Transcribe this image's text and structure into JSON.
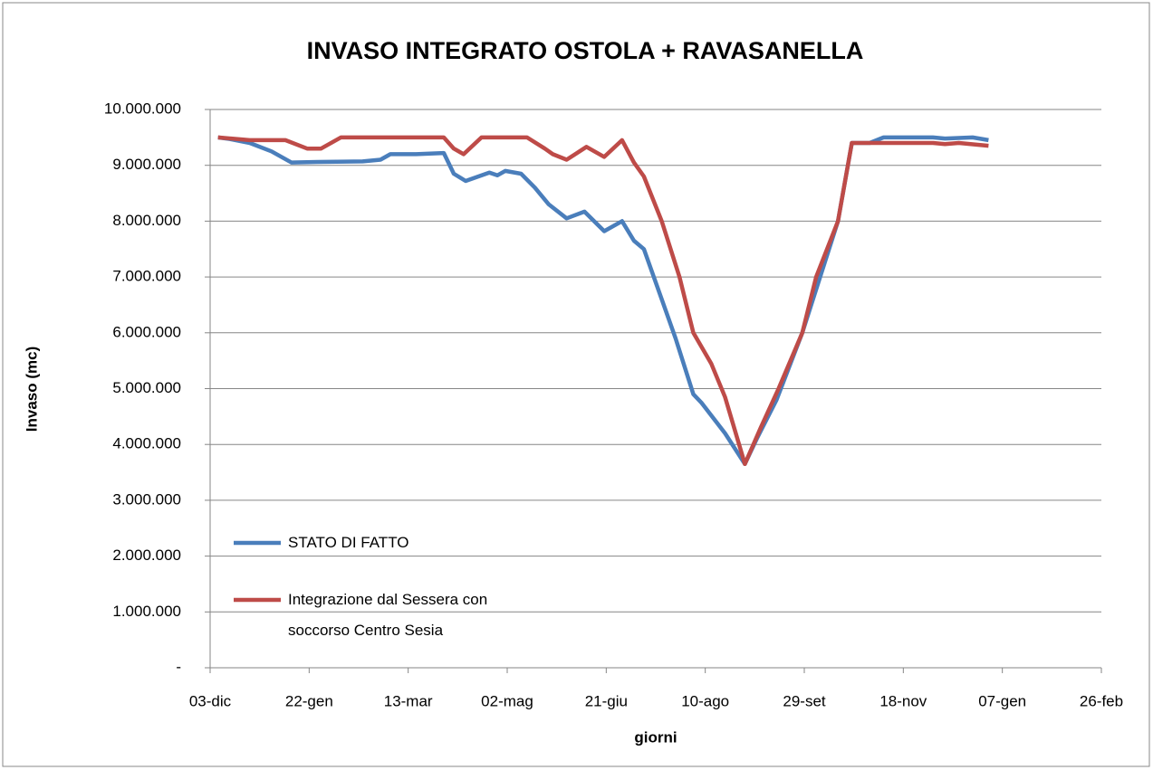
{
  "chart_data": {
    "type": "line",
    "title": "INVASO INTEGRATO OSTOLA + RAVASANELLA",
    "x_label": "giorni",
    "y_label": "Invaso (mc)",
    "xlim": [
      0,
      450
    ],
    "xticks": [
      {
        "value": 0,
        "label": "03-dic"
      },
      {
        "value": 50,
        "label": "22-gen"
      },
      {
        "value": 100,
        "label": "13-mar"
      },
      {
        "value": 150,
        "label": "02-mag"
      },
      {
        "value": 200,
        "label": "21-giu"
      },
      {
        "value": 250,
        "label": "10-ago"
      },
      {
        "value": 300,
        "label": "29-set"
      },
      {
        "value": 350,
        "label": "18-nov"
      },
      {
        "value": 400,
        "label": "07-gen"
      },
      {
        "value": 450,
        "label": "26-feb"
      }
    ],
    "ylim": [
      0,
      10000000
    ],
    "yticks": [
      {
        "value": 0,
        "label": "-"
      },
      {
        "value": 1000000,
        "label": "1.000.000"
      },
      {
        "value": 2000000,
        "label": "2.000.000"
      },
      {
        "value": 3000000,
        "label": "3.000.000"
      },
      {
        "value": 4000000,
        "label": "4.000.000"
      },
      {
        "value": 5000000,
        "label": "5.000.000"
      },
      {
        "value": 6000000,
        "label": "6.000.000"
      },
      {
        "value": 7000000,
        "label": "7.000.000"
      },
      {
        "value": 8000000,
        "label": "8.000.000"
      },
      {
        "value": 9000000,
        "label": "9.000.000"
      },
      {
        "value": 10000000,
        "label": "10.000.000"
      }
    ],
    "grid": true,
    "legend": "lower left",
    "series": [
      {
        "name": "STATO DI FATTO",
        "color": "#4a7ebb",
        "x": [
          4,
          10,
          20,
          31,
          41,
          54,
          77,
          86,
          91,
          104,
          118,
          123,
          129,
          141,
          145,
          149,
          157,
          164,
          171,
          180,
          189,
          199,
          208,
          214,
          219,
          228,
          235,
          244,
          248,
          260,
          270,
          276,
          286,
          299,
          308,
          317,
          324,
          333,
          340,
          365,
          371,
          385,
          393
        ],
        "values": [
          9500000,
          9470000,
          9400000,
          9250000,
          9050000,
          9060000,
          9070000,
          9100000,
          9200000,
          9200000,
          9220000,
          8850000,
          8720000,
          8870000,
          8820000,
          8900000,
          8850000,
          8600000,
          8300000,
          8050000,
          8170000,
          7820000,
          8000000,
          7650000,
          7500000,
          6600000,
          5900000,
          4900000,
          4750000,
          4200000,
          3650000,
          4100000,
          4800000,
          6000000,
          7000000,
          8000000,
          9400000,
          9400000,
          9500000,
          9500000,
          9480000,
          9500000,
          9450000
        ]
      },
      {
        "name": "Integrazione dal Sessera con soccorso Centro Sesia",
        "color": "#be4b48",
        "x": [
          4,
          20,
          38,
          49,
          56,
          66,
          118,
          123,
          128,
          137,
          160,
          169,
          173,
          180,
          190,
          199,
          208,
          214,
          219,
          228,
          237,
          244,
          253,
          260,
          270,
          278,
          287,
          299,
          306,
          317,
          324,
          365,
          371,
          378,
          393
        ],
        "values": [
          9500000,
          9450000,
          9450000,
          9300000,
          9300000,
          9500000,
          9500000,
          9300000,
          9200000,
          9500000,
          9500000,
          9300000,
          9200000,
          9100000,
          9330000,
          9150000,
          9450000,
          9050000,
          8800000,
          8000000,
          7000000,
          6000000,
          5450000,
          4850000,
          3650000,
          4300000,
          5000000,
          6000000,
          7000000,
          8000000,
          9400000,
          9400000,
          9380000,
          9400000,
          9350000
        ]
      }
    ]
  }
}
